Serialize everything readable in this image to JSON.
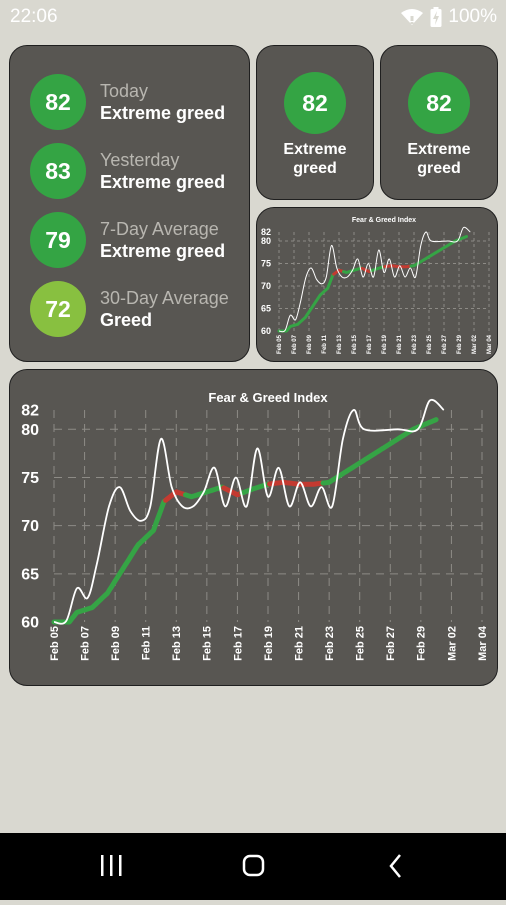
{
  "status_bar": {
    "time": "22:06",
    "battery": "100%"
  },
  "summary": {
    "rows": [
      {
        "value": "82",
        "label": "Today",
        "rating": "Extreme greed",
        "color": "#34a444"
      },
      {
        "value": "83",
        "label": "Yesterday",
        "rating": "Extreme greed",
        "color": "#34a444"
      },
      {
        "value": "79",
        "label": "7-Day Average",
        "rating": "Extreme greed",
        "color": "#34a444"
      },
      {
        "value": "72",
        "label": "30-Day Average",
        "rating": "Greed",
        "color": "#88c040"
      }
    ]
  },
  "widgets": [
    {
      "value": "82",
      "line1": "Extreme",
      "line2": "greed"
    },
    {
      "value": "82",
      "line1": "Extreme",
      "line2": "greed"
    }
  ],
  "chart_data": {
    "type": "line",
    "title": "Fear & Greed Index",
    "y_ticks": [
      60,
      65,
      70,
      75,
      80,
      82
    ],
    "ylim": [
      60,
      82
    ],
    "x_labels": [
      "Feb 05",
      "Feb 07",
      "Feb 09",
      "Feb 11",
      "Feb 13",
      "Feb 15",
      "Feb 17",
      "Feb 19",
      "Feb 21",
      "Feb 23",
      "Feb 25",
      "Feb 27",
      "Feb 29",
      "Mar 02",
      "Mar 04"
    ],
    "x_days": [
      0,
      2,
      4,
      6,
      8,
      10,
      12,
      14,
      16,
      18,
      20,
      22,
      24,
      26,
      28
    ],
    "grid": true,
    "series": [
      {
        "values": [
          {
            "day": 0,
            "y": 60
          },
          {
            "day": 0.8,
            "y": 60.1
          },
          {
            "day": 1.5,
            "y": 63.5
          },
          {
            "day": 2.2,
            "y": 62.5
          },
          {
            "day": 2.8,
            "y": 66
          },
          {
            "day": 3.6,
            "y": 72
          },
          {
            "day": 4.3,
            "y": 74
          },
          {
            "day": 5,
            "y": 71.5
          },
          {
            "day": 5.7,
            "y": 70.5
          },
          {
            "day": 6.3,
            "y": 72
          },
          {
            "day": 7,
            "y": 79
          },
          {
            "day": 7.7,
            "y": 74
          },
          {
            "day": 8.4,
            "y": 72
          },
          {
            "day": 9.1,
            "y": 72
          },
          {
            "day": 9.8,
            "y": 73.5
          },
          {
            "day": 10.5,
            "y": 76
          },
          {
            "day": 11.2,
            "y": 72
          },
          {
            "day": 11.9,
            "y": 75
          },
          {
            "day": 12.6,
            "y": 72
          },
          {
            "day": 13.3,
            "y": 78
          },
          {
            "day": 14,
            "y": 73
          },
          {
            "day": 14.7,
            "y": 76
          },
          {
            "day": 15.4,
            "y": 72
          },
          {
            "day": 16.1,
            "y": 74.5
          },
          {
            "day": 16.8,
            "y": 72
          },
          {
            "day": 17.5,
            "y": 74
          },
          {
            "day": 18.2,
            "y": 72
          },
          {
            "day": 18.9,
            "y": 79
          },
          {
            "day": 19.6,
            "y": 82
          },
          {
            "day": 20.3,
            "y": 80
          },
          {
            "day": 22.5,
            "y": 80
          },
          {
            "day": 23.8,
            "y": 80
          },
          {
            "day": 24.6,
            "y": 83
          },
          {
            "day": 25.5,
            "y": 82
          }
        ],
        "color": "#ffffff"
      },
      {
        "values": [
          {
            "day": 0,
            "y": 60
          },
          {
            "day": 1,
            "y": 60
          },
          {
            "day": 1.5,
            "y": 61
          },
          {
            "day": 2.5,
            "y": 61.5
          },
          {
            "day": 3.5,
            "y": 63
          },
          {
            "day": 4.5,
            "y": 65.5
          },
          {
            "day": 5.5,
            "y": 68
          },
          {
            "day": 6.5,
            "y": 69.5
          },
          {
            "day": 7.2,
            "y": 72.5
          },
          {
            "day": 8,
            "y": 73.5
          },
          {
            "day": 9,
            "y": 73
          },
          {
            "day": 10,
            "y": 73.5
          },
          {
            "day": 11,
            "y": 74
          },
          {
            "day": 12,
            "y": 73.2
          },
          {
            "day": 13,
            "y": 73.8
          },
          {
            "day": 14,
            "y": 74.3
          },
          {
            "day": 15,
            "y": 74.5
          },
          {
            "day": 16,
            "y": 74.3
          },
          {
            "day": 17,
            "y": 74.3
          },
          {
            "day": 18,
            "y": 74.5
          },
          {
            "day": 19,
            "y": 75.5
          },
          {
            "day": 20.5,
            "y": 77
          },
          {
            "day": 22,
            "y": 78.5
          },
          {
            "day": 23.5,
            "y": 80
          },
          {
            "day": 25,
            "y": 81
          }
        ],
        "colors": {
          "green": "#35a445",
          "red": "#c43a31"
        },
        "red_ranges": [
          [
            7.2,
            8.5
          ],
          [
            11,
            12.2
          ],
          [
            14,
            17.5
          ]
        ]
      }
    ]
  }
}
